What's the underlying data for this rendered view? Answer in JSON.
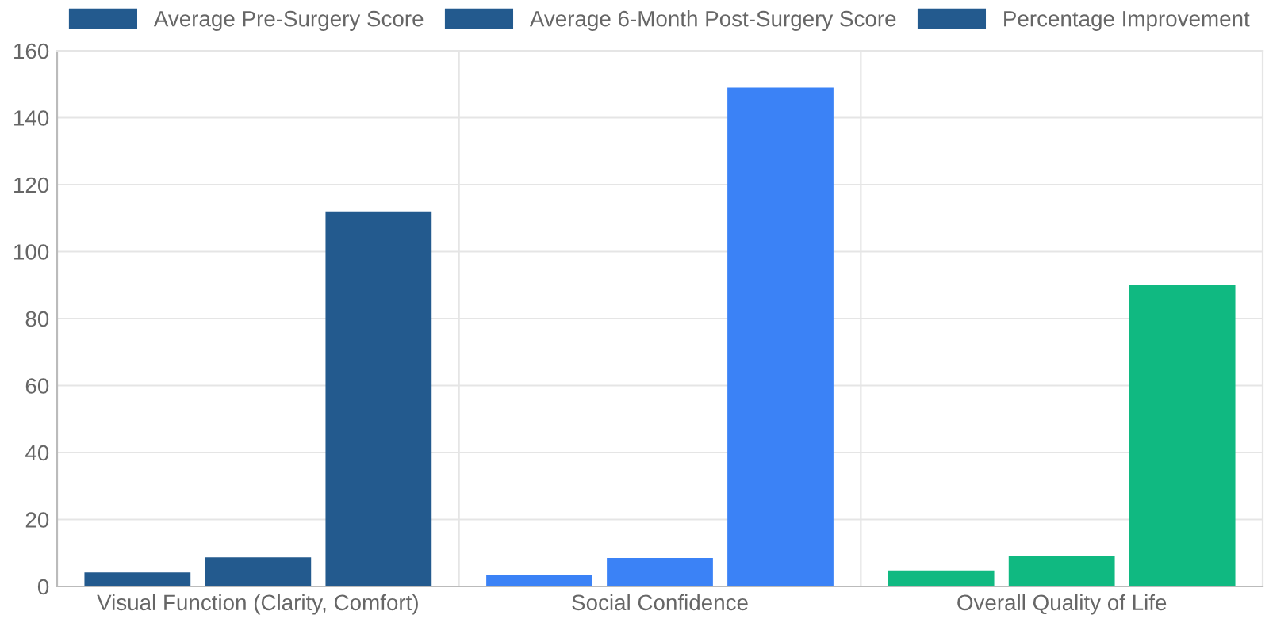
{
  "chart_data": {
    "type": "bar",
    "categories": [
      "Visual Function (Clarity, Comfort)",
      "Social Confidence",
      "Overall Quality of Life"
    ],
    "series": [
      {
        "name": "Average Pre-Surgery Score",
        "color": "#235a8e",
        "colors": [
          "#235a8e",
          "#3b82f6",
          "#10b981"
        ],
        "values": [
          4.2,
          3.5,
          4.8
        ]
      },
      {
        "name": "Average 6-Month Post-Surgery Score",
        "color": "#235a8e",
        "colors": [
          "#235a8e",
          "#3b82f6",
          "#10b981"
        ],
        "values": [
          8.7,
          8.5,
          9.0
        ]
      },
      {
        "name": "Percentage Improvement",
        "color": "#235a8e",
        "colors": [
          "#235a8e",
          "#3b82f6",
          "#10b981"
        ],
        "values": [
          112,
          149,
          90
        ]
      }
    ],
    "ylim": [
      0,
      160
    ],
    "yticks": [
      0,
      20,
      40,
      60,
      80,
      100,
      120,
      140,
      160
    ],
    "grid": true,
    "legend": "top"
  }
}
